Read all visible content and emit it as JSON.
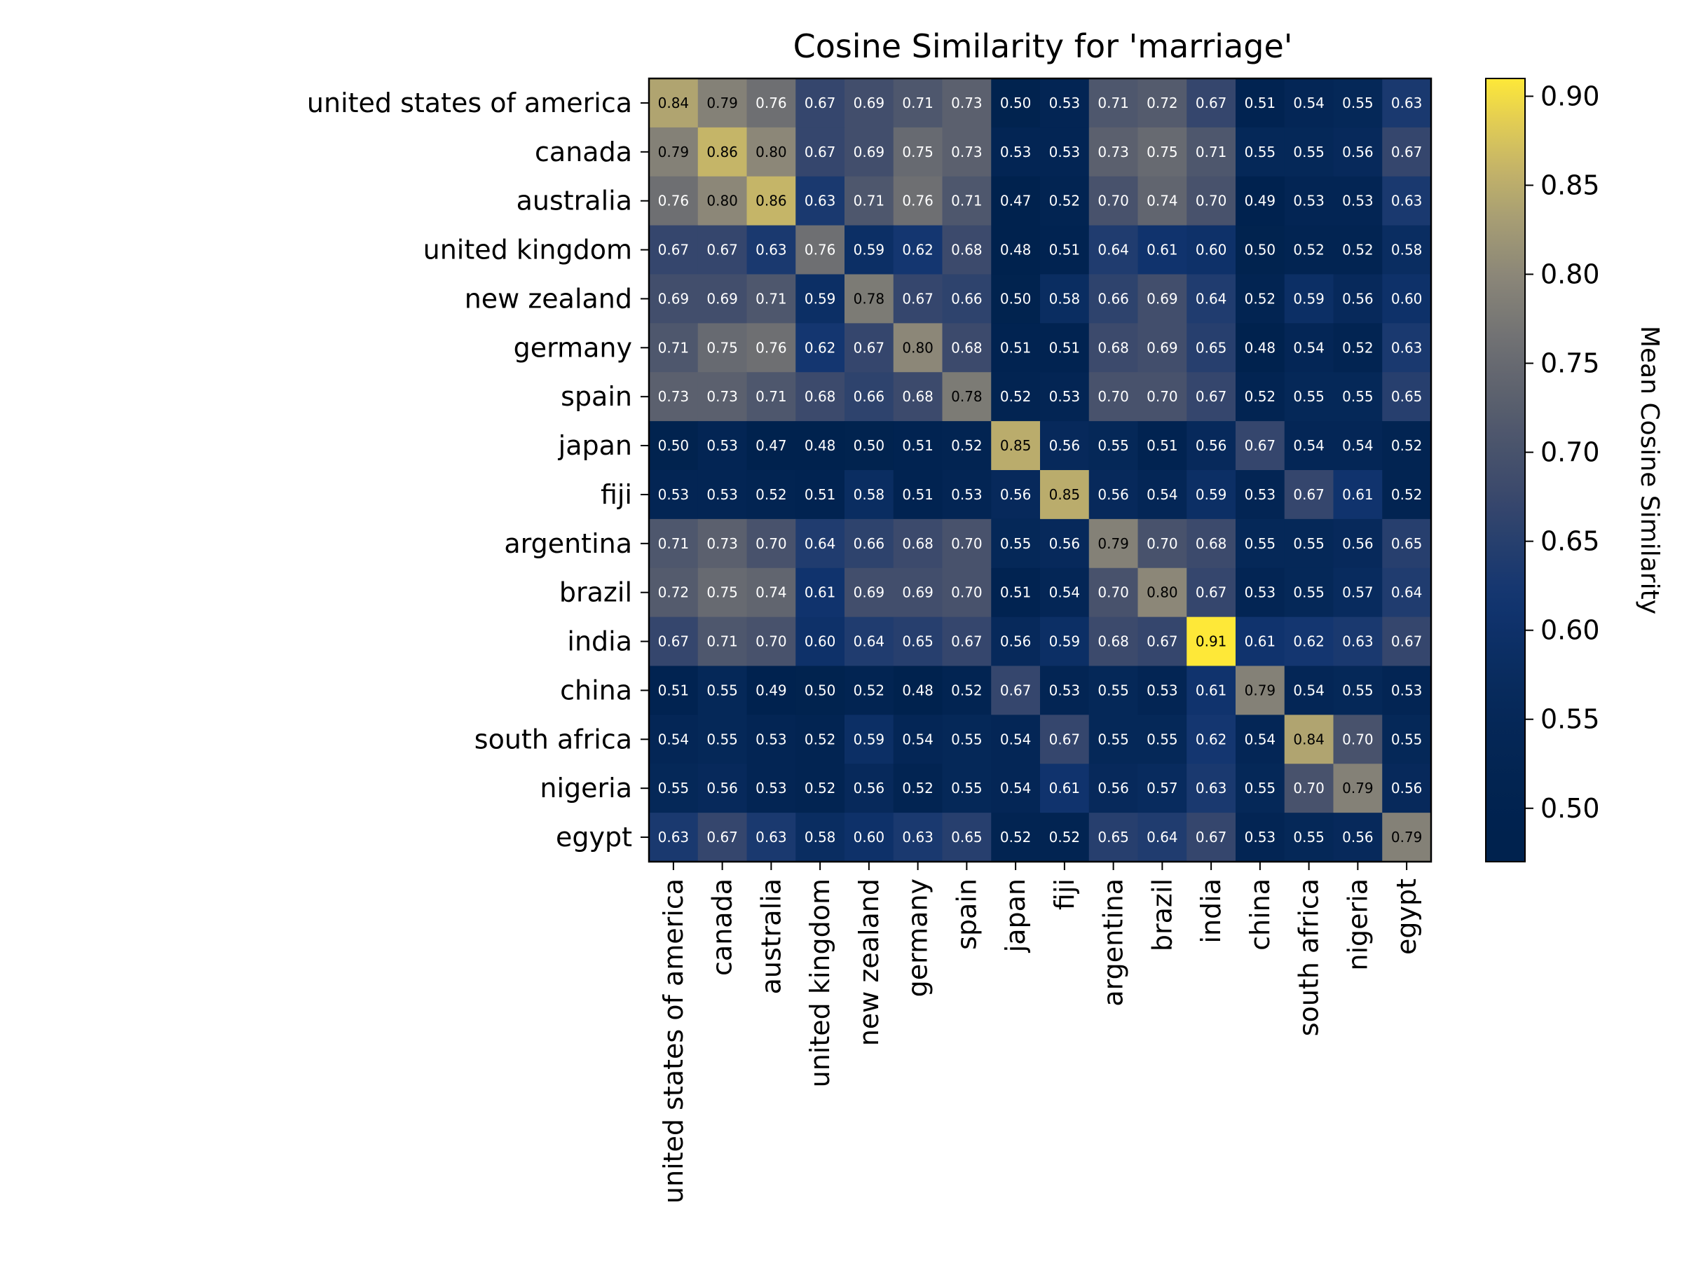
{
  "chart_data": {
    "type": "heatmap",
    "title": "Cosine Similarity for 'marriage'",
    "rows": [
      "united states of america",
      "canada",
      "australia",
      "united kingdom",
      "new zealand",
      "germany",
      "spain",
      "japan",
      "fiji",
      "argentina",
      "brazil",
      "india",
      "china",
      "south africa",
      "nigeria",
      "egypt"
    ],
    "columns": [
      "united states of america",
      "canada",
      "australia",
      "united kingdom",
      "new zealand",
      "germany",
      "spain",
      "japan",
      "fiji",
      "argentina",
      "brazil",
      "india",
      "china",
      "south africa",
      "nigeria",
      "egypt"
    ],
    "values": [
      [
        0.84,
        0.79,
        0.76,
        0.67,
        0.69,
        0.71,
        0.73,
        0.5,
        0.53,
        0.71,
        0.72,
        0.67,
        0.51,
        0.54,
        0.55,
        0.63
      ],
      [
        0.79,
        0.86,
        0.8,
        0.67,
        0.69,
        0.75,
        0.73,
        0.53,
        0.53,
        0.73,
        0.75,
        0.71,
        0.55,
        0.55,
        0.56,
        0.67
      ],
      [
        0.76,
        0.8,
        0.86,
        0.63,
        0.71,
        0.76,
        0.71,
        0.47,
        0.52,
        0.7,
        0.74,
        0.7,
        0.49,
        0.53,
        0.53,
        0.63
      ],
      [
        0.67,
        0.67,
        0.63,
        0.76,
        0.59,
        0.62,
        0.68,
        0.48,
        0.51,
        0.64,
        0.61,
        0.6,
        0.5,
        0.52,
        0.52,
        0.58
      ],
      [
        0.69,
        0.69,
        0.71,
        0.59,
        0.78,
        0.67,
        0.66,
        0.5,
        0.58,
        0.66,
        0.69,
        0.64,
        0.52,
        0.59,
        0.56,
        0.6
      ],
      [
        0.71,
        0.75,
        0.76,
        0.62,
        0.67,
        0.8,
        0.68,
        0.51,
        0.51,
        0.68,
        0.69,
        0.65,
        0.48,
        0.54,
        0.52,
        0.63
      ],
      [
        0.73,
        0.73,
        0.71,
        0.68,
        0.66,
        0.68,
        0.78,
        0.52,
        0.53,
        0.7,
        0.7,
        0.67,
        0.52,
        0.55,
        0.55,
        0.65
      ],
      [
        0.5,
        0.53,
        0.47,
        0.48,
        0.5,
        0.51,
        0.52,
        0.85,
        0.56,
        0.55,
        0.51,
        0.56,
        0.67,
        0.54,
        0.54,
        0.52
      ],
      [
        0.53,
        0.53,
        0.52,
        0.51,
        0.58,
        0.51,
        0.53,
        0.56,
        0.85,
        0.56,
        0.54,
        0.59,
        0.53,
        0.67,
        0.61,
        0.52
      ],
      [
        0.71,
        0.73,
        0.7,
        0.64,
        0.66,
        0.68,
        0.7,
        0.55,
        0.56,
        0.79,
        0.7,
        0.68,
        0.55,
        0.55,
        0.56,
        0.65
      ],
      [
        0.72,
        0.75,
        0.74,
        0.61,
        0.69,
        0.69,
        0.7,
        0.51,
        0.54,
        0.7,
        0.8,
        0.67,
        0.53,
        0.55,
        0.57,
        0.64
      ],
      [
        0.67,
        0.71,
        0.7,
        0.6,
        0.64,
        0.65,
        0.67,
        0.56,
        0.59,
        0.68,
        0.67,
        0.91,
        0.61,
        0.62,
        0.63,
        0.67
      ],
      [
        0.51,
        0.55,
        0.49,
        0.5,
        0.52,
        0.48,
        0.52,
        0.67,
        0.53,
        0.55,
        0.53,
        0.61,
        0.79,
        0.54,
        0.55,
        0.53
      ],
      [
        0.54,
        0.55,
        0.53,
        0.52,
        0.59,
        0.54,
        0.55,
        0.54,
        0.67,
        0.55,
        0.55,
        0.62,
        0.54,
        0.84,
        0.7,
        0.55
      ],
      [
        0.55,
        0.56,
        0.53,
        0.52,
        0.56,
        0.52,
        0.55,
        0.54,
        0.61,
        0.56,
        0.57,
        0.63,
        0.55,
        0.7,
        0.79,
        0.56
      ],
      [
        0.63,
        0.67,
        0.63,
        0.58,
        0.6,
        0.63,
        0.65,
        0.52,
        0.52,
        0.65,
        0.64,
        0.67,
        0.53,
        0.55,
        0.56,
        0.79
      ]
    ],
    "colorbar": {
      "label": "Mean Cosine Similarity",
      "range": [
        0.47,
        0.91
      ],
      "ticks": [
        "0.50",
        "0.55",
        "0.60",
        "0.65",
        "0.70",
        "0.75",
        "0.80",
        "0.85",
        "0.90"
      ],
      "scale": "power-normalized"
    },
    "colormap": {
      "name": "cividis",
      "stops": [
        "#00224e",
        "#123570",
        "#3b496c",
        "#575d6d",
        "#707173",
        "#8a8678",
        "#a59c74",
        "#c3b369",
        "#e1cc55",
        "#fee838"
      ]
    }
  }
}
